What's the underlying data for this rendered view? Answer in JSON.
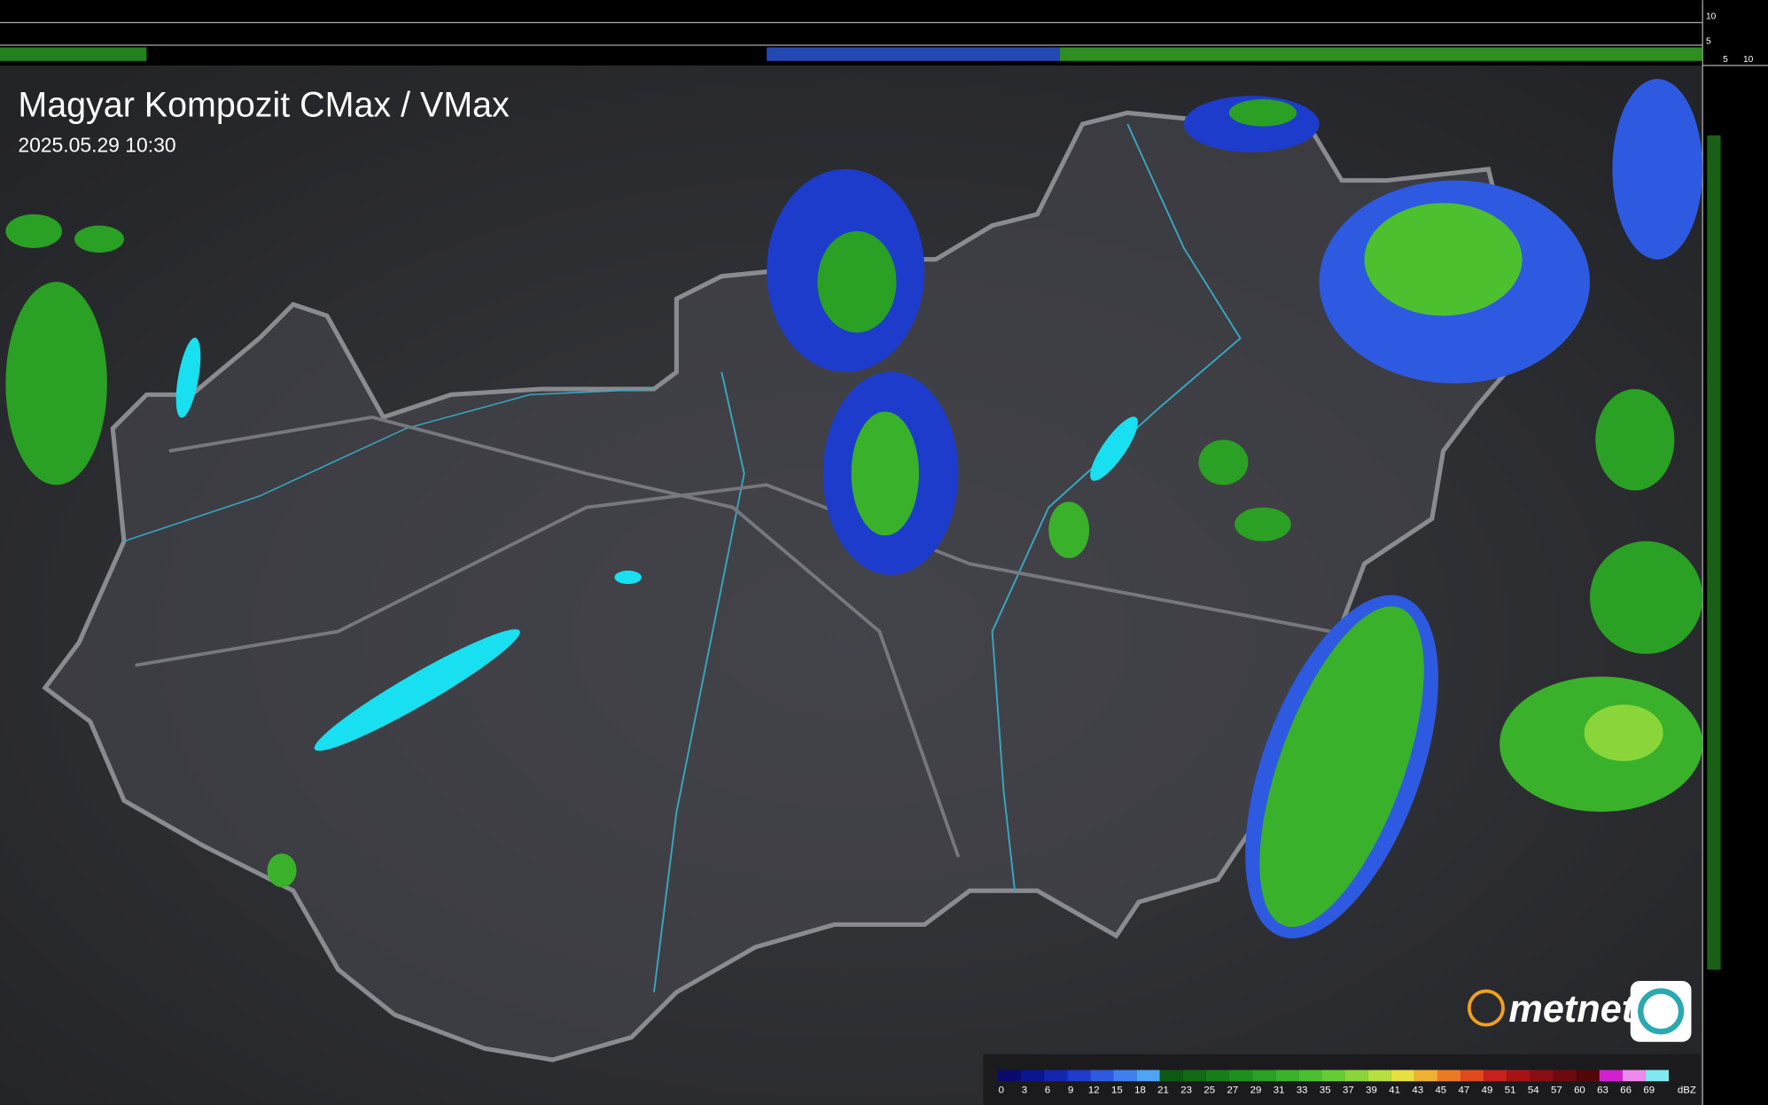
{
  "header": {
    "title": "Magyar Kompozit CMax / VMax",
    "timestamp": "2025.05.29 10:30"
  },
  "side_scale": {
    "right_ticks": [
      "10",
      "5"
    ],
    "top_ticks": [
      "5",
      "10"
    ]
  },
  "logo": {
    "text": "metnet"
  },
  "legend": {
    "labels": [
      "0",
      "3",
      "6",
      "9",
      "12",
      "15",
      "18",
      "21",
      "23",
      "25",
      "27",
      "29",
      "31",
      "33",
      "35",
      "37",
      "39",
      "41",
      "43",
      "45",
      "47",
      "49",
      "51",
      "54",
      "57",
      "60",
      "63",
      "66",
      "69"
    ],
    "unit": "dBZ",
    "colors": [
      "#0a0a6e",
      "#0c1590",
      "#1226b0",
      "#1d3ccc",
      "#2d5ae0",
      "#3f7ff0",
      "#4ea4f5",
      "#0e5a12",
      "#116b14",
      "#177d18",
      "#1f8f1e",
      "#2aa024",
      "#3ab12a",
      "#4dc02f",
      "#66cc33",
      "#8ad63a",
      "#b5e040",
      "#e6e040",
      "#f0b030",
      "#ec7a24",
      "#e04a1c",
      "#c8201a",
      "#a81416",
      "#8a0e12",
      "#6e0a0e",
      "#520608",
      "#d21fd2",
      "#ee8aee",
      "#7fe8f0"
    ]
  }
}
